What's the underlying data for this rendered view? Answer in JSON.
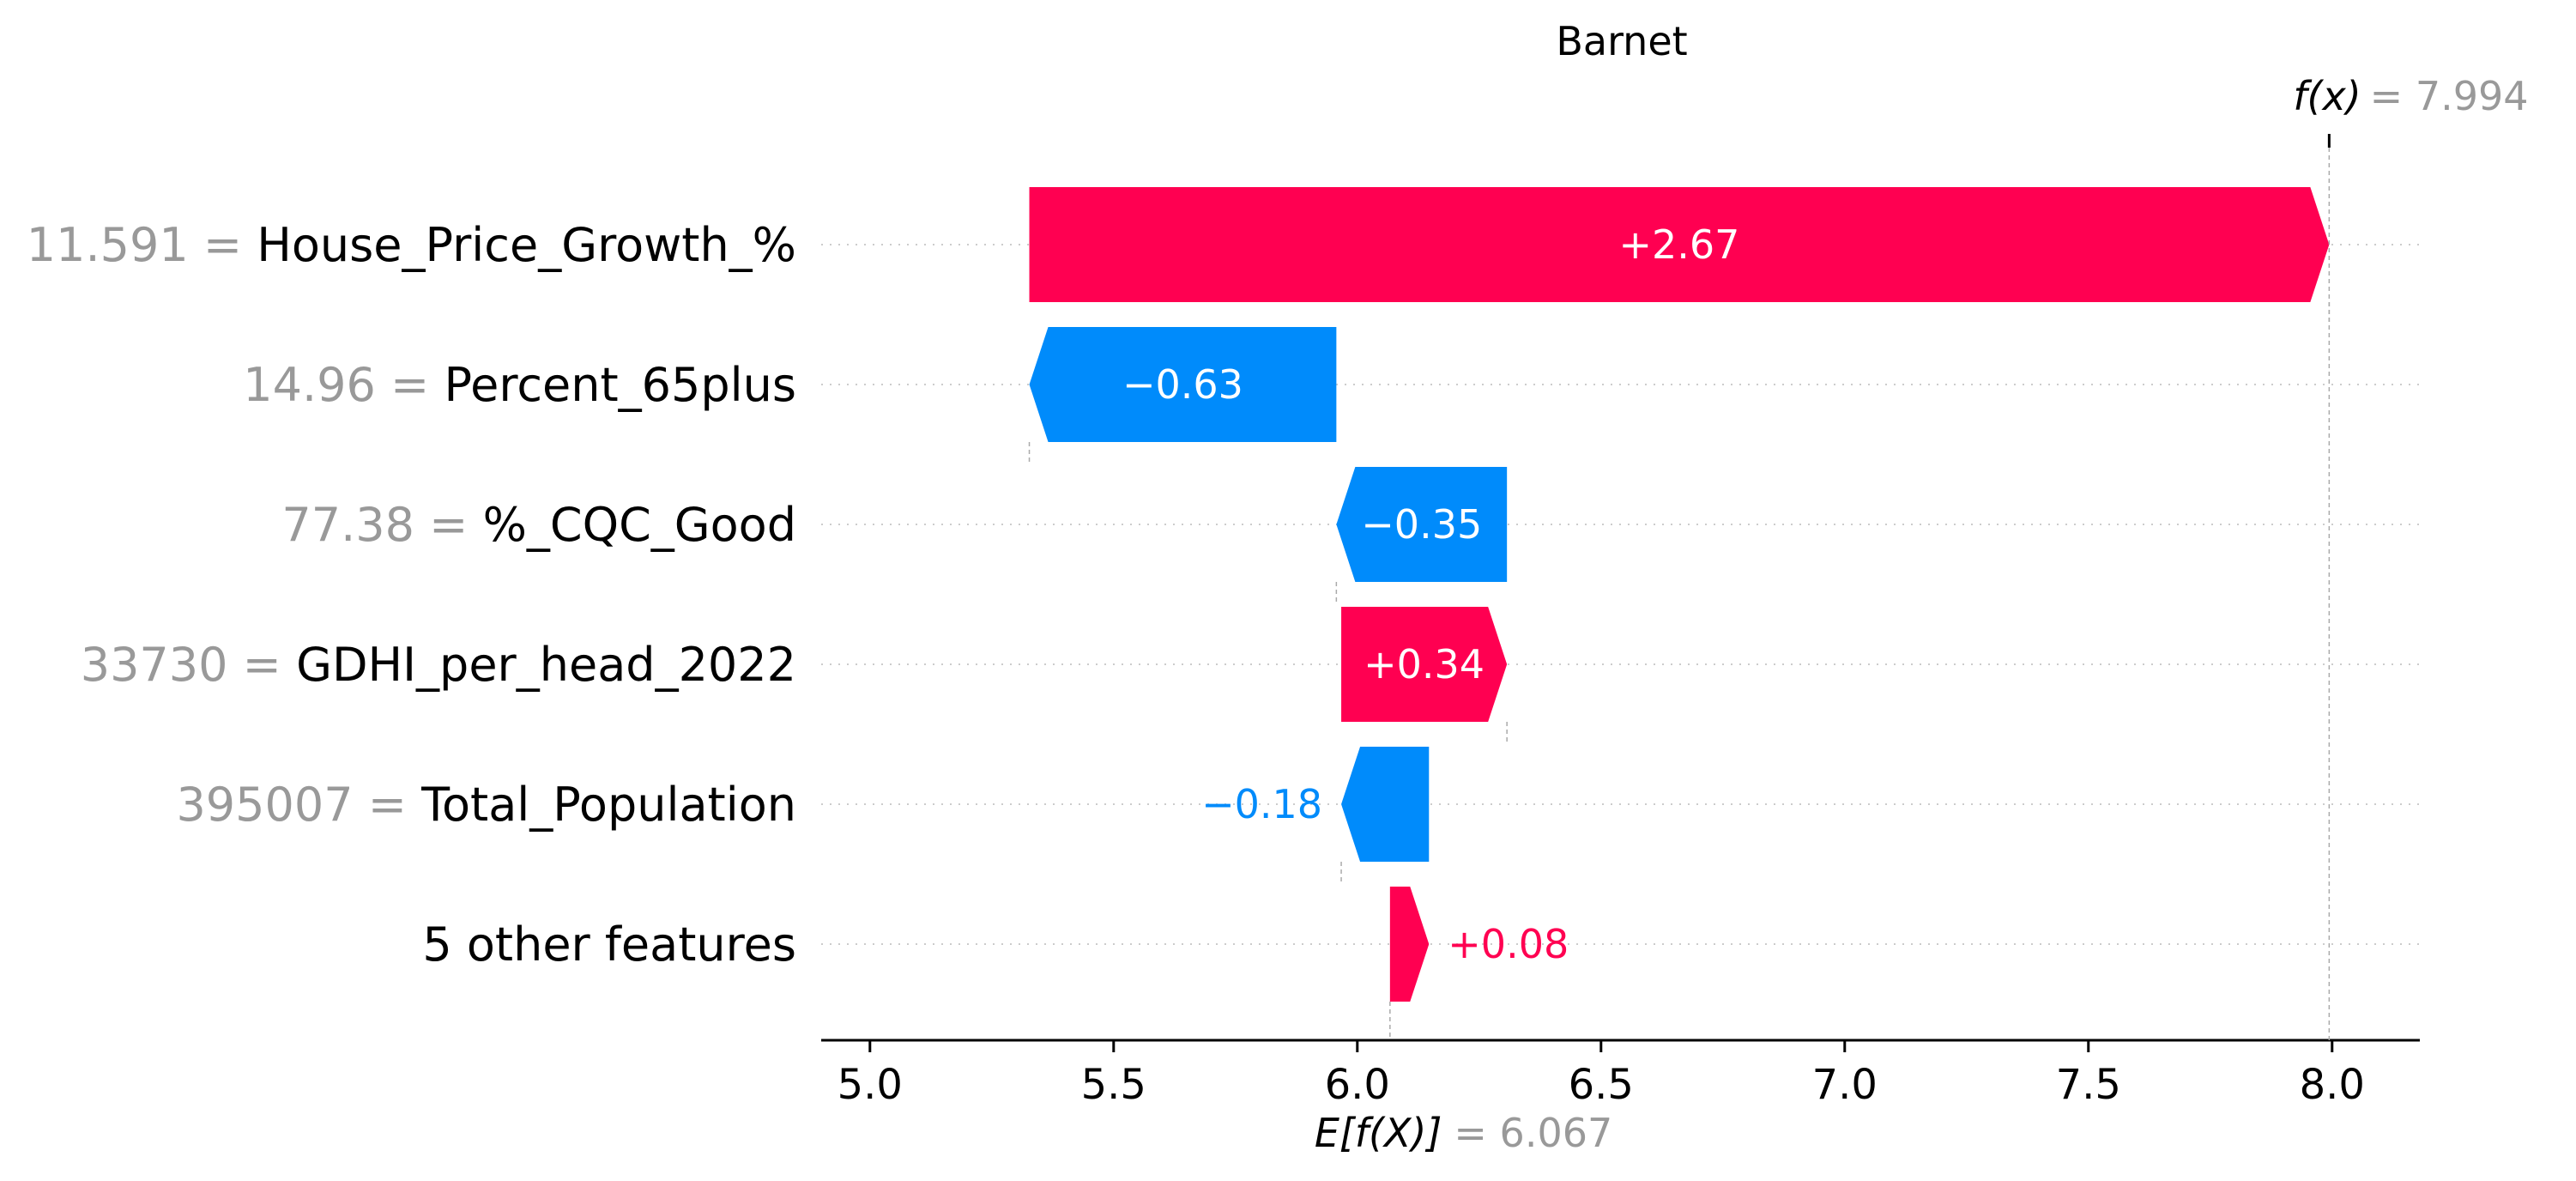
{
  "chart_data": {
    "type": "waterfall",
    "title": "Barnet",
    "base_value": 6.067,
    "base_label": "E[f(X)]",
    "base_value_text": "= 6.067",
    "output_value": 7.994,
    "output_label": "f(x)",
    "output_value_text": "= 7.994",
    "xlim": [
      4.9,
      8.18
    ],
    "xticks": [
      5.0,
      5.5,
      6.0,
      6.5,
      7.0,
      7.5,
      8.0
    ],
    "xtick_labels": [
      "5.0",
      "5.5",
      "6.0",
      "6.5",
      "7.0",
      "7.5",
      "8.0"
    ],
    "grid": "horizontal dotted per feature row",
    "colors": {
      "positive": "#ff0051",
      "negative": "#008bfb",
      "muted": "#999999"
    },
    "features": [
      {
        "value": "11.591",
        "eq": " = ",
        "name": "House_Price_Growth_%",
        "start": 5.327,
        "contribution": 2.667,
        "label": "+2.67",
        "label_inside": true
      },
      {
        "value": "14.96",
        "eq": " = ",
        "name": "Percent_65plus",
        "start": 5.957,
        "contribution": -0.63,
        "label": "−0.63",
        "label_inside": true
      },
      {
        "value": "77.38",
        "eq": " = ",
        "name": "%_CQC_Good",
        "start": 6.307,
        "contribution": -0.35,
        "label": "−0.35",
        "label_inside": true
      },
      {
        "value": "33730",
        "eq": " = ",
        "name": "GDHI_per_head_2022",
        "start": 5.967,
        "contribution": 0.34,
        "label": "+0.34",
        "label_inside": true
      },
      {
        "value": "395007",
        "eq": " = ",
        "name": "Total_Population",
        "start": 6.147,
        "contribution": -0.18,
        "label": "−0.18",
        "label_inside": false
      },
      {
        "value": "",
        "eq": "",
        "name": "5 other features",
        "start": 6.067,
        "contribution": 0.08,
        "label": "+0.08",
        "label_inside": false
      }
    ]
  }
}
